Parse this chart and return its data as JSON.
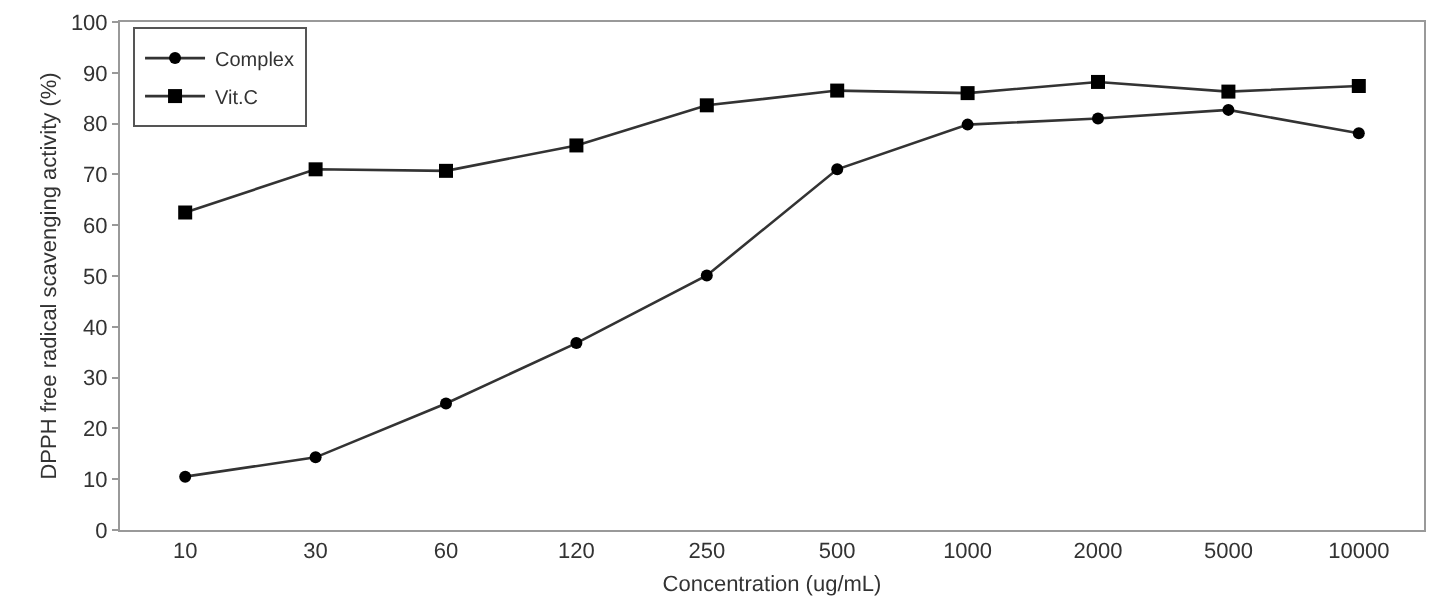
{
  "chart_data": {
    "type": "line",
    "xlabel": "Concentration (ug/mL)",
    "ylabel": "DPPH free radical scavenging activity (%)",
    "categories": [
      "10",
      "30",
      "60",
      "120",
      "250",
      "500",
      "1000",
      "2000",
      "5000",
      "10000"
    ],
    "series": [
      {
        "name": "Complex",
        "color": "#333333",
        "marker": "circle",
        "values": [
          10.5,
          14.3,
          24.9,
          36.8,
          50.1,
          71.0,
          79.8,
          81.0,
          82.7,
          78.1
        ]
      },
      {
        "name": "Vit.C",
        "color": "#333333",
        "marker": "square",
        "values": [
          62.5,
          71.0,
          70.7,
          75.7,
          83.6,
          86.5,
          86.0,
          88.2,
          86.3,
          87.4
        ]
      }
    ],
    "ylim": [
      0,
      100
    ],
    "yticks": [
      0,
      10,
      20,
      30,
      40,
      50,
      60,
      70,
      80,
      90,
      100
    ],
    "legend": "top left",
    "line_style": "solid"
  }
}
